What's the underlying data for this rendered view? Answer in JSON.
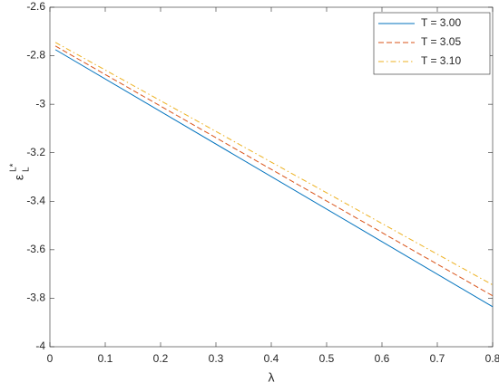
{
  "chart_data": {
    "type": "line",
    "xlabel": "λ",
    "ylabel": {
      "base": "ε",
      "sup": "L*",
      "sub": "L"
    },
    "x": [
      0.01,
      0.8
    ],
    "series": [
      {
        "name": "T = 3.00",
        "color": "#0072bd",
        "dash": "solid",
        "values": [
          -2.775,
          -3.835
        ]
      },
      {
        "name": "T = 3.05",
        "color": "#d95319",
        "dash": "dashed",
        "values": [
          -2.76,
          -3.79
        ]
      },
      {
        "name": "T = 3.10",
        "color": "#edb120",
        "dash": "dashdot",
        "values": [
          -2.745,
          -3.745
        ]
      }
    ],
    "xlim": [
      0,
      0.8
    ],
    "xticks": [
      0,
      0.1,
      0.2,
      0.3,
      0.4,
      0.5,
      0.6,
      0.7,
      0.8
    ],
    "ylim": [
      -4,
      -2.6
    ],
    "yticks": [
      -4,
      -3.8,
      -3.6,
      -3.4,
      -3.2,
      -3,
      -2.8,
      -2.6
    ],
    "grid": false,
    "legend": "top-right"
  }
}
